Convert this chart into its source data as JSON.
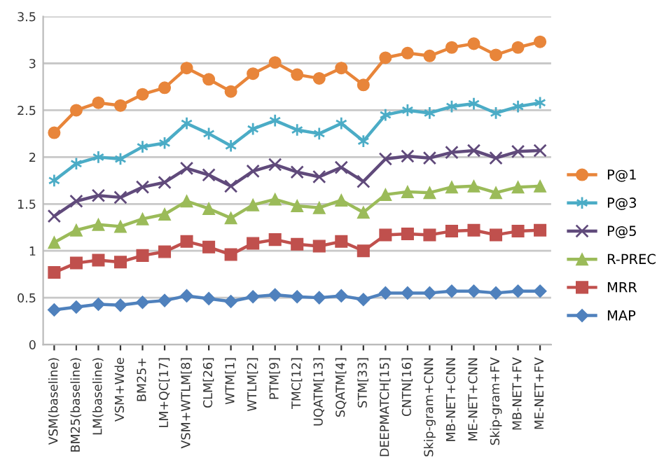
{
  "chart_data": {
    "type": "line",
    "categories": [
      "VSM(baseline)",
      "BM25(baseline)",
      "LM(baseline)",
      "VSM+Wde",
      "BM25+",
      "LM+QC[17]",
      "VSM+WTLM[8]",
      "CLM[26]",
      "WTM[1]",
      "WTLM[2]",
      "PTM[9]",
      "TMC[12]",
      "UQATM[13]",
      "SQATM[4]",
      "STM[33]",
      "DEEPMATCH[15]",
      "CNTN[16]",
      "Skip-gram+CNN",
      "MB-NET+CNN",
      "ME-NET+CNN",
      "Skip-gram+FV",
      "MB-NET+FV",
      "ME-NET+FV"
    ],
    "series": [
      {
        "name": "P@1",
        "color": "#e8853a",
        "marker": "circle",
        "values": [
          2.26,
          2.5,
          2.58,
          2.55,
          2.67,
          2.74,
          2.95,
          2.83,
          2.7,
          2.89,
          3.01,
          2.88,
          2.84,
          2.95,
          2.77,
          3.06,
          3.11,
          3.08,
          3.17,
          3.21,
          3.09,
          3.17,
          3.23
        ]
      },
      {
        "name": "P@3",
        "color": "#4bacc6",
        "marker": "cross",
        "values": [
          1.75,
          1.93,
          2.0,
          1.98,
          2.11,
          2.15,
          2.36,
          2.25,
          2.12,
          2.3,
          2.39,
          2.29,
          2.25,
          2.36,
          2.17,
          2.45,
          2.5,
          2.47,
          2.54,
          2.57,
          2.47,
          2.54,
          2.58
        ]
      },
      {
        "name": "P@5",
        "color": "#604a7b",
        "marker": "cross",
        "values": [
          1.37,
          1.53,
          1.59,
          1.57,
          1.68,
          1.73,
          1.88,
          1.81,
          1.69,
          1.85,
          1.92,
          1.84,
          1.79,
          1.89,
          1.74,
          1.98,
          2.01,
          1.99,
          2.05,
          2.07,
          1.99,
          2.06,
          2.07
        ]
      },
      {
        "name": "R-PREC",
        "color": "#9bbb59",
        "marker": "triangle",
        "values": [
          1.09,
          1.22,
          1.28,
          1.26,
          1.34,
          1.39,
          1.53,
          1.45,
          1.35,
          1.49,
          1.55,
          1.48,
          1.46,
          1.54,
          1.41,
          1.6,
          1.63,
          1.62,
          1.68,
          1.69,
          1.62,
          1.68,
          1.69
        ]
      },
      {
        "name": "MRR",
        "color": "#c0504d",
        "marker": "square",
        "values": [
          0.77,
          0.87,
          0.9,
          0.88,
          0.95,
          0.99,
          1.1,
          1.04,
          0.96,
          1.08,
          1.12,
          1.07,
          1.05,
          1.1,
          1.0,
          1.17,
          1.18,
          1.17,
          1.21,
          1.22,
          1.17,
          1.21,
          1.22
        ]
      },
      {
        "name": "MAP",
        "color": "#4f81bd",
        "marker": "diamond",
        "values": [
          0.37,
          0.4,
          0.43,
          0.42,
          0.45,
          0.47,
          0.52,
          0.49,
          0.46,
          0.51,
          0.53,
          0.51,
          0.5,
          0.52,
          0.48,
          0.55,
          0.55,
          0.55,
          0.57,
          0.57,
          0.55,
          0.57,
          0.57
        ]
      }
    ],
    "ylim": [
      0,
      3.5
    ],
    "yticks": [
      0,
      0.5,
      1,
      1.5,
      2,
      2.5,
      3,
      3.5
    ],
    "grid": "y",
    "legend": "right"
  }
}
